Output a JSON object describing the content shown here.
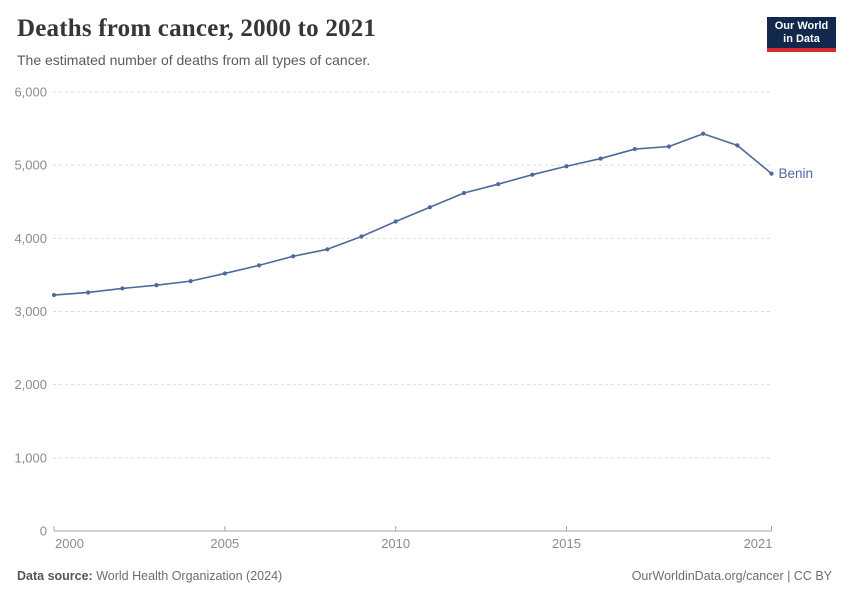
{
  "header": {
    "title": "Deaths from cancer, 2000 to 2021",
    "subtitle": "The estimated number of deaths from all types of cancer.",
    "logo": {
      "line1": "Our World",
      "line2": "in Data",
      "bg_color": "#12294d",
      "stripe_color": "#d42b2f",
      "text_color": "#ffffff"
    }
  },
  "chart_data": {
    "type": "line",
    "title": "Deaths from cancer, 2000 to 2021",
    "subtitle": "The estimated number of deaths from all types of cancer.",
    "xlabel": "",
    "ylabel": "",
    "xlim": [
      2000,
      2021
    ],
    "ylim": [
      0,
      6000
    ],
    "x_ticks": [
      2000,
      2005,
      2010,
      2015,
      2021
    ],
    "y_ticks": [
      0,
      1000,
      2000,
      3000,
      4000,
      5000,
      6000
    ],
    "grid": "horizontal-dashed",
    "legend_position": "end-of-line-label",
    "series": [
      {
        "name": "Benin",
        "color": "#4c6a9c",
        "x": [
          2000,
          2001,
          2002,
          2003,
          2004,
          2005,
          2006,
          2007,
          2008,
          2009,
          2010,
          2011,
          2012,
          2013,
          2014,
          2015,
          2016,
          2017,
          2018,
          2019,
          2020,
          2021
        ],
        "values": [
          3225,
          3260,
          3315,
          3360,
          3415,
          3520,
          3630,
          3755,
          3850,
          4025,
          4230,
          4425,
          4620,
          4740,
          4870,
          4985,
          5090,
          5220,
          5255,
          5430,
          5270,
          4885
        ]
      }
    ],
    "axis_color": "#a5a5a5",
    "gridline_color": "#dcdcdc",
    "tick_label_color": "#8c8c8c"
  },
  "footer": {
    "source_label": "Data source:",
    "source_value": " World Health Organization (2024)",
    "license": "OurWorldinData.org/cancer | CC BY"
  }
}
